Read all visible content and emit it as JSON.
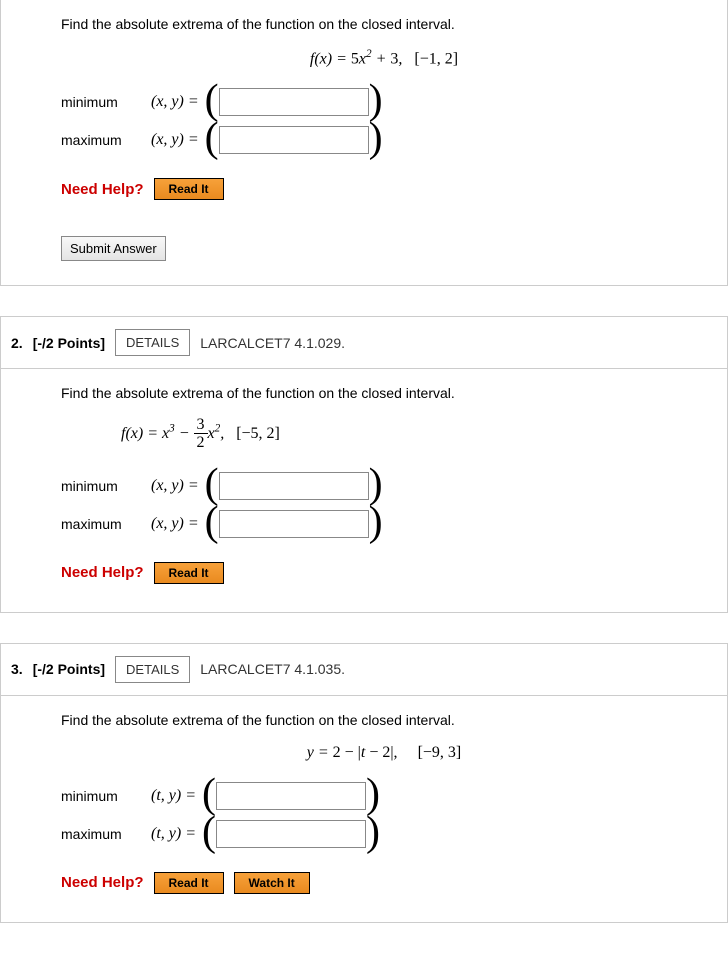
{
  "q1": {
    "prompt": "Find the absolute extrema of the function on the closed interval.",
    "formula_html": "f(x) = <span class='upright'>5</span>x<sup>2</sup> + <span class='upright'>3</span>, &nbsp; <span class='upright'>[−1, 2]</span>",
    "min_label": "minimum",
    "max_label": "maximum",
    "xy_label": "(x, y)  = ",
    "need_help": "Need Help?",
    "read_it": "Read It",
    "submit": "Submit Answer"
  },
  "q2": {
    "number": "2.",
    "points": "[-/2 Points]",
    "details": "DETAILS",
    "source": "LARCALCET7 4.1.029.",
    "prompt": "Find the absolute extrema of the function on the closed interval.",
    "formula_prefix": "f(x) = x<sup>3</sup> − ",
    "formula_suffix": "x<sup>2</sup>, &nbsp; <span class='upright'>[−5, 2]</span>",
    "frac_num": "3",
    "frac_den": "2",
    "min_label": "minimum",
    "max_label": "maximum",
    "xy_label": "(x, y)  = ",
    "need_help": "Need Help?",
    "read_it": "Read It"
  },
  "q3": {
    "number": "3.",
    "points": "[-/2 Points]",
    "details": "DETAILS",
    "source": "LARCALCET7 4.1.035.",
    "prompt": "Find the absolute extrema of the function on the closed interval.",
    "formula_html": "y = <span class='upright'>2 − |</span>t<span class='upright'> − 2|,</span> &nbsp;&nbsp;&nbsp; <span class='upright'>[−9, 3]</span>",
    "min_label": "minimum",
    "max_label": "maximum",
    "ty_label": "(t, y)  = ",
    "need_help": "Need Help?",
    "read_it": "Read It",
    "watch_it": "Watch It"
  }
}
